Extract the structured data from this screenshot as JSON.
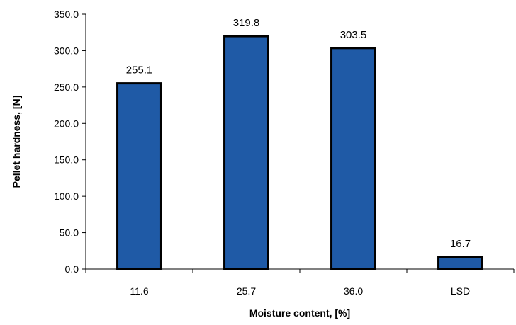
{
  "chart_data": {
    "type": "bar",
    "categories": [
      "11.6",
      "25.7",
      "36.0",
      "LSD"
    ],
    "values": [
      255.1,
      319.8,
      303.5,
      16.7
    ],
    "value_labels": [
      "255.1",
      "319.8",
      "303.5",
      "16.7"
    ],
    "xlabel": "Moisture content, [%]",
    "ylabel": "Pellet hardness, [N]",
    "ylim": [
      0,
      350
    ],
    "yticks": [
      0,
      50,
      100,
      150,
      200,
      250,
      300,
      350
    ],
    "ytick_labels": [
      "0.0",
      "50.0",
      "100.0",
      "150.0",
      "200.0",
      "250.0",
      "300.0",
      "350.0"
    ],
    "grid": false,
    "legend": "none",
    "bar_color": "#1f5aa6",
    "bar_edge_color": "#000000"
  }
}
